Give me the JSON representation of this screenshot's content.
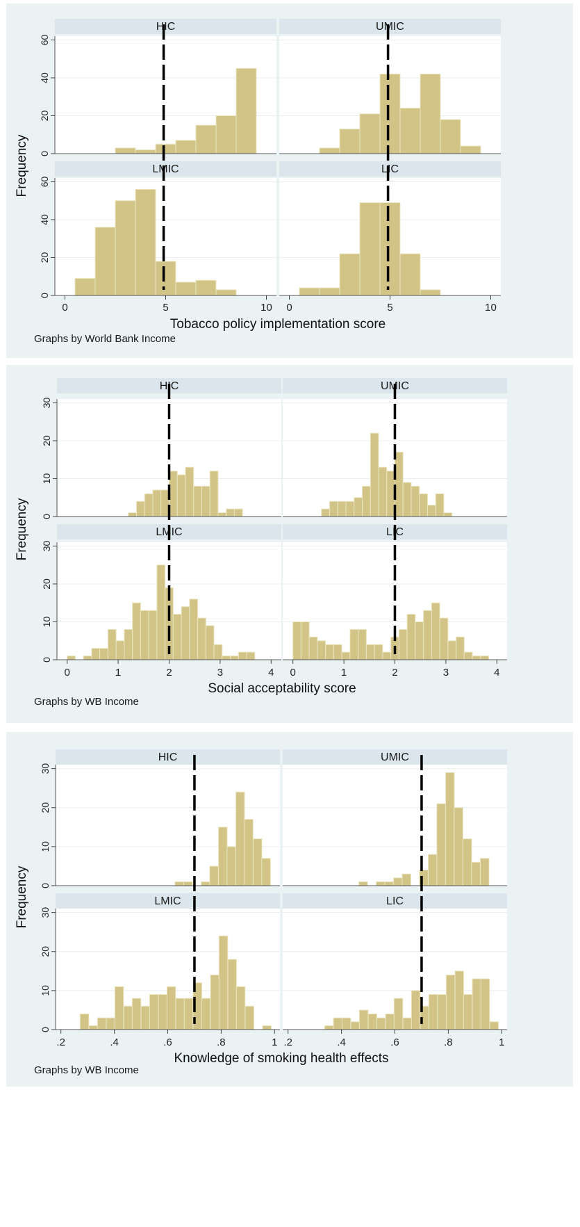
{
  "style": {
    "bar_fill": "#d1c486",
    "bar_stroke": "#ece6c4",
    "panel_bg": "#ffffff",
    "strip_bg": "#dae6eb",
    "outer_bg": "#eaf2f3",
    "grid_color": "#e8eef0",
    "ref_line_color": "#000000"
  },
  "chart_data": [
    {
      "type": "bar",
      "subtype": "histogram-grid",
      "xlabel": "Tobacco policy implementation score",
      "ylabel": "Frequency",
      "note": "Graphs by World Bank Income",
      "xlim": [
        -0.5,
        10.5
      ],
      "ylim": [
        0,
        62
      ],
      "xticks": [
        0,
        5,
        10
      ],
      "xtick_labels": [
        "0",
        "5",
        "10"
      ],
      "yticks": [
        0,
        20,
        40,
        60
      ],
      "ytick_labels": [
        "0",
        "20",
        "40",
        "60"
      ],
      "reference_line_x": 4.9,
      "bin_width": 1,
      "grid": true,
      "panels": [
        {
          "label": "HIC",
          "bin_start": [
            2.5,
            3.5,
            4.5,
            5.5,
            6.5,
            7.5,
            8.5
          ],
          "values": [
            3,
            2,
            5,
            7,
            15,
            20,
            45
          ]
        },
        {
          "label": "UMIC",
          "bin_start": [
            1.5,
            2.5,
            3.5,
            4.5,
            5.5,
            6.5,
            7.5,
            8.5
          ],
          "values": [
            3,
            13,
            21,
            42,
            24,
            42,
            18,
            4
          ]
        },
        {
          "label": "LMIC",
          "bin_start": [
            0.5,
            1.5,
            2.5,
            3.5,
            4.5,
            5.5,
            6.5,
            7.5
          ],
          "values": [
            9,
            36,
            50,
            56,
            18,
            7,
            8,
            3
          ]
        },
        {
          "label": "LIC",
          "bin_start": [
            0.5,
            1.5,
            2.5,
            3.5,
            4.5,
            5.5,
            6.5
          ],
          "values": [
            4,
            4,
            22,
            49,
            49,
            22,
            3
          ]
        }
      ]
    },
    {
      "type": "bar",
      "subtype": "histogram-grid",
      "xlabel": "Social acceptability score",
      "ylabel": "Frequency",
      "note": "Graphs by WB Income",
      "xlim": [
        -0.2,
        4.2
      ],
      "ylim": [
        0,
        31
      ],
      "xticks": [
        0,
        1,
        2,
        3,
        4
      ],
      "xtick_labels": [
        "0",
        "1",
        "2",
        "3",
        "4"
      ],
      "yticks": [
        0,
        10,
        20,
        30
      ],
      "ytick_labels": [
        "0",
        "10",
        "20",
        "30"
      ],
      "reference_line_x": 2,
      "bin_width": 0.16,
      "grid": true,
      "panels": [
        {
          "label": "HIC",
          "bin_start": [
            1.2,
            1.36,
            1.52,
            1.68,
            1.84,
            2.0,
            2.16,
            2.32,
            2.48,
            2.64,
            2.8,
            2.96,
            3.12,
            3.28,
            3.44
          ],
          "values": [
            1,
            4,
            6,
            7,
            7,
            12,
            11,
            13,
            8,
            8,
            12,
            1,
            2,
            2,
            0
          ]
        },
        {
          "label": "UMIC",
          "bin_start": [
            0.56,
            0.72,
            0.88,
            1.04,
            1.2,
            1.36,
            1.52,
            1.68,
            1.84,
            2.0,
            2.16,
            2.32,
            2.48,
            2.64,
            2.8,
            2.96
          ],
          "values": [
            2,
            4,
            4,
            4,
            5,
            8,
            22,
            13,
            12,
            17,
            9,
            8,
            6,
            3,
            6,
            1
          ]
        },
        {
          "label": "LMIC",
          "bin_start": [
            0.0,
            0.16,
            0.32,
            0.48,
            0.64,
            0.8,
            0.96,
            1.12,
            1.28,
            1.44,
            1.6,
            1.76,
            1.92,
            2.08,
            2.24,
            2.4,
            2.56,
            2.72,
            2.88,
            3.04,
            3.2,
            3.36,
            3.52,
            3.68,
            3.84
          ],
          "values": [
            1,
            0,
            1,
            3,
            3,
            8,
            5,
            8,
            15,
            13,
            13,
            25,
            19,
            12,
            14,
            16,
            11,
            9,
            4,
            1,
            1,
            2,
            2,
            0,
            0
          ]
        },
        {
          "label": "LIC",
          "bin_start": [
            0.0,
            0.16,
            0.32,
            0.48,
            0.64,
            0.8,
            0.96,
            1.12,
            1.28,
            1.44,
            1.6,
            1.76,
            1.92,
            2.08,
            2.24,
            2.4,
            2.56,
            2.72,
            2.88,
            3.04,
            3.2,
            3.36,
            3.52,
            3.68
          ],
          "values": [
            10,
            10,
            6,
            5,
            4,
            4,
            2,
            8,
            8,
            4,
            4,
            2,
            6,
            8,
            12,
            10,
            13,
            15,
            11,
            5,
            6,
            2,
            1,
            1
          ]
        }
      ]
    },
    {
      "type": "bar",
      "subtype": "histogram-grid",
      "xlabel": "Knowledge of smoking health effects",
      "ylabel": "Frequency",
      "note": "Graphs by WB Income",
      "xlim": [
        0.18,
        1.02
      ],
      "ylim": [
        0,
        31
      ],
      "xticks": [
        0.2,
        0.4,
        0.6,
        0.8,
        1.0
      ],
      "xtick_labels": [
        ".2",
        ".4",
        ".6",
        ".8",
        "1"
      ],
      "yticks": [
        0,
        10,
        20,
        30
      ],
      "ytick_labels": [
        "0",
        "10",
        "20",
        "30"
      ],
      "reference_line_x": 0.7,
      "bin_width": 0.0325,
      "grid": true,
      "panels": [
        {
          "label": "HIC",
          "bin_start": [
            0.627,
            0.66,
            0.692,
            0.725,
            0.757,
            0.79,
            0.822,
            0.855,
            0.887,
            0.92,
            0.952
          ],
          "values": [
            1,
            1,
            0,
            1,
            5,
            15,
            10,
            24,
            17,
            12,
            7
          ]
        },
        {
          "label": "UMIC",
          "bin_start": [
            0.465,
            0.497,
            0.53,
            0.562,
            0.595,
            0.627,
            0.66,
            0.692,
            0.725,
            0.757,
            0.79,
            0.822,
            0.855,
            0.887,
            0.92
          ],
          "values": [
            1,
            0,
            1,
            1,
            2,
            3,
            0,
            4,
            8,
            21,
            29,
            20,
            12,
            6,
            7
          ]
        },
        {
          "label": "LMIC",
          "bin_start": [
            0.272,
            0.305,
            0.337,
            0.37,
            0.402,
            0.435,
            0.467,
            0.5,
            0.532,
            0.565,
            0.597,
            0.63,
            0.662,
            0.695,
            0.727,
            0.76,
            0.792,
            0.825,
            0.857,
            0.89,
            0.922,
            0.955
          ],
          "values": [
            4,
            1,
            3,
            3,
            11,
            6,
            8,
            6,
            9,
            9,
            11,
            8,
            8,
            12,
            8,
            14,
            24,
            18,
            11,
            6,
            0,
            1
          ]
        },
        {
          "label": "LIC",
          "bin_start": [
            0.337,
            0.37,
            0.402,
            0.435,
            0.467,
            0.5,
            0.532,
            0.565,
            0.597,
            0.63,
            0.662,
            0.695,
            0.727,
            0.76,
            0.792,
            0.825,
            0.857,
            0.89,
            0.922,
            0.955
          ],
          "values": [
            1,
            3,
            3,
            2,
            5,
            4,
            3,
            4,
            8,
            3,
            10,
            6,
            9,
            9,
            14,
            15,
            9,
            13,
            13,
            2
          ]
        }
      ]
    }
  ]
}
